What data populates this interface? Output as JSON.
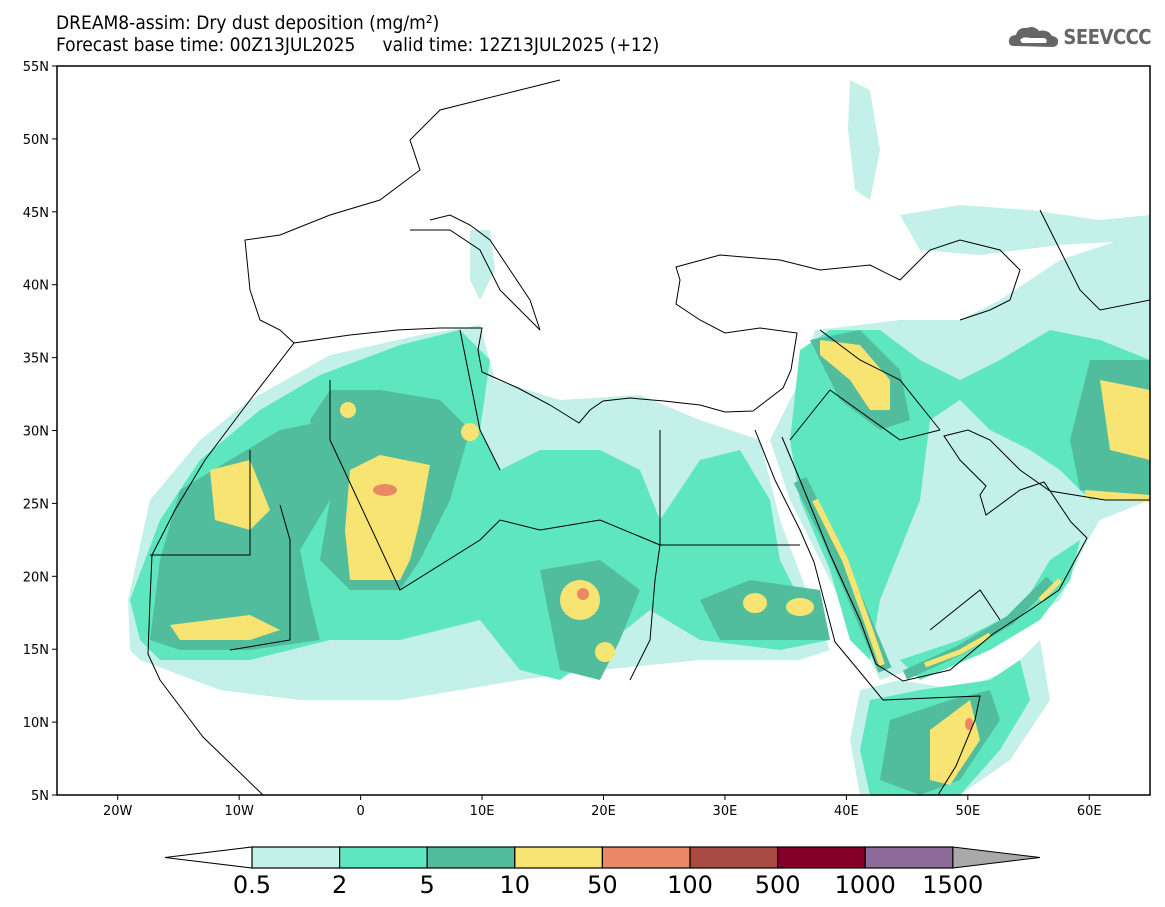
{
  "header": {
    "title": "DREAM8-assim: Dry dust deposition (mg/m²)",
    "subtitle": "Forecast base time: 00Z13JUL2025     valid time: 12Z13JUL2025 (+12)",
    "logo": "SEEVCCC"
  },
  "map": {
    "lat_labels": [
      "55N",
      "50N",
      "45N",
      "40N",
      "35N",
      "30N",
      "25N",
      "20N",
      "15N",
      "10N",
      "5N"
    ],
    "lon_labels": [
      "20W",
      "10W",
      "0",
      "10E",
      "20E",
      "30E",
      "40E",
      "50E",
      "60E"
    ],
    "lat_range": [
      5,
      55
    ],
    "lon_range": [
      -25,
      65
    ]
  },
  "colorbar": {
    "labels": [
      "0.5",
      "2",
      "5",
      "10",
      "50",
      "100",
      "500",
      "1000",
      "1500"
    ],
    "colors": [
      "#c3f1ea",
      "#5ee6be",
      "#52bd9c",
      "#f8e473",
      "#ea8865",
      "#a94b43",
      "#850028",
      "#8e6a9a"
    ],
    "under_color": "#ffffff",
    "over_color": "#a9a9a9"
  }
}
